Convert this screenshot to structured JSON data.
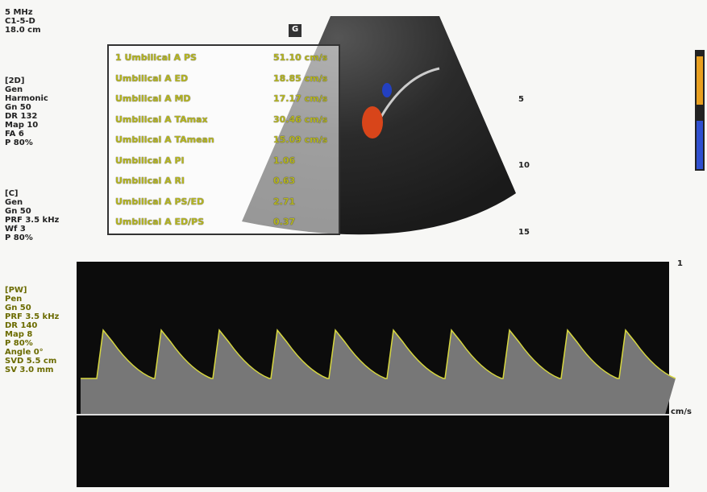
{
  "header": {
    "probe": [
      "5 MHz",
      "C1-5-D",
      "18.0 cm"
    ],
    "marker": "G"
  },
  "settings": [
    {
      "title": "[2D]",
      "lines": [
        "Gen",
        "Harmonic",
        "Gn 50",
        "DR 132",
        "Map 10",
        "FA 6",
        "P 80%"
      ]
    },
    {
      "title": "[C]",
      "lines": [
        "Gen",
        "Gn 50",
        "PRF 3.5 kHz",
        "Wf 3",
        "P 80%"
      ]
    },
    {
      "title": "[PW]",
      "lines": [
        "Pen",
        "Gn 50",
        "PRF 3.5 kHz",
        "DR 140",
        "Map 8",
        "P 80%",
        "Angle 0°",
        "SVD 5.5 cm",
        "SV 3.0 mm"
      ]
    }
  ],
  "measurements": {
    "rows": [
      [
        "1 Umbilical A PS",
        "51.10 cm/s"
      ],
      [
        "Umbilical A ED",
        "18.85 cm/s"
      ],
      [
        "Umbilical A MD",
        "17.17 cm/s"
      ],
      [
        "Umbilical A TAmax",
        "30.46 cm/s"
      ],
      [
        "Umbilical A TAmean",
        "15.09 cm/s"
      ],
      [
        "Umbilical A PI",
        "1.06"
      ],
      [
        "Umbilical A RI",
        "0.63"
      ],
      [
        "Umbilical A PS/ED",
        "2.71"
      ],
      [
        "Umbilical A ED/PS",
        "0.37"
      ]
    ]
  },
  "depth_scale": [
    "5",
    "10",
    "15"
  ],
  "doppler": {
    "scale_top": "1",
    "unit": "cm/s"
  }
}
